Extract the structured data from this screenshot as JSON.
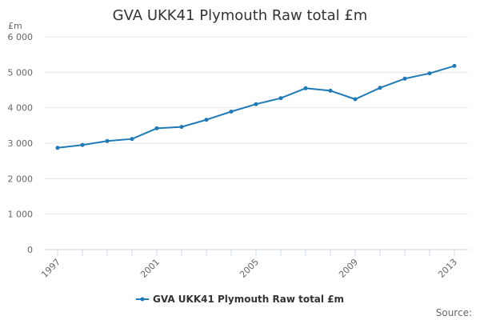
{
  "chart_data": {
    "type": "line",
    "title": "GVA UKK41 Plymouth Raw total £m",
    "ylabel": "£m",
    "xlabel": "",
    "x": [
      1997,
      1998,
      1999,
      2000,
      2001,
      2002,
      2003,
      2004,
      2005,
      2006,
      2007,
      2008,
      2009,
      2010,
      2011,
      2012,
      2013
    ],
    "series": [
      {
        "name": "GVA UKK41 Plymouth Raw total £m",
        "color": "#1f7ab8",
        "values": [
          2870,
          2950,
          3060,
          3120,
          3420,
          3460,
          3660,
          3890,
          4100,
          4270,
          4550,
          4480,
          4240,
          4560,
          4820,
          4970,
          5180
        ]
      }
    ],
    "xticks": [
      "1997",
      "2001",
      "2005",
      "2009",
      "2013"
    ],
    "yticks": [
      "0",
      "1 000",
      "2 000",
      "3 000",
      "4 000",
      "5 000",
      "6 000"
    ],
    "ylim": [
      0,
      6000
    ],
    "xlim": [
      1997,
      2013
    ],
    "grid": true,
    "legend": "bottom-center",
    "source": "Source:"
  }
}
